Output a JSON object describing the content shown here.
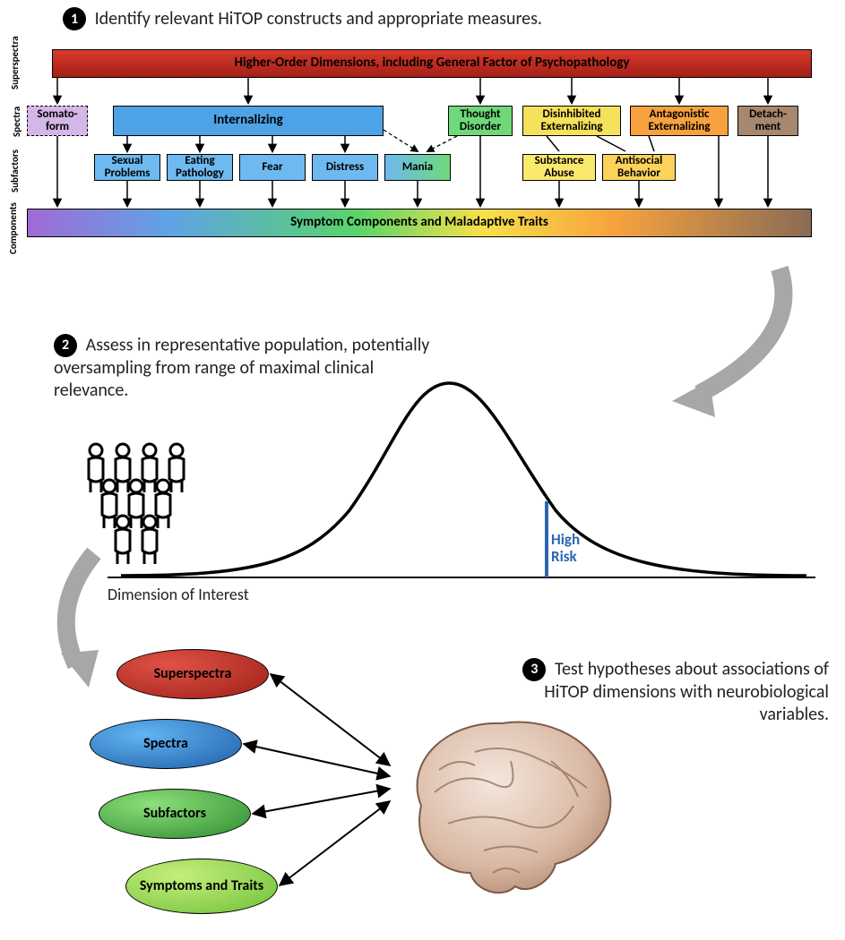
{
  "diagram_type": "infographic",
  "steps": {
    "s1": {
      "num": "1",
      "text": "Identify relevant HiTOP constructs and appropriate measures."
    },
    "s2": {
      "num": "2",
      "text": "Assess in representative population, potentially oversampling from range of maximal clinical relevance."
    },
    "s3": {
      "num": "3",
      "text": "Test hypotheses about associations of HiTOP dimensions with neurobiological variables."
    }
  },
  "row_labels": {
    "superspectra": "Superspectra",
    "spectra": "Spectra",
    "subfactors": "Subfactors",
    "components": "Components"
  },
  "hierarchy": {
    "superspectra": {
      "label": "Higher-Order Dimensions, including General Factor of Psychopathology",
      "background": "linear-gradient(#d83a2b,#a41f17)"
    },
    "spectra": {
      "somatoform": {
        "label": "Somato-\nform",
        "color": "#d4b6e7",
        "dashed": true
      },
      "internalizing": {
        "label": "Internalizing",
        "color": "#4ea3e6"
      },
      "thought": {
        "label": "Thought Disorder",
        "color": "#6fd97a"
      },
      "disinhibited": {
        "label": "Disinhibited Externalizing",
        "color": "#f6e15a"
      },
      "antagonistic": {
        "label": "Antagonistic Externalizing",
        "color": "#f7a23e"
      },
      "detachment": {
        "label": "Detach-\nment",
        "color": "#a8876f"
      }
    },
    "subfactors": {
      "sexual": {
        "label": "Sexual Problems",
        "color": "#6eb9ef"
      },
      "eating": {
        "label": "Eating Pathology",
        "color": "#6eb9ef"
      },
      "fear": {
        "label": "Fear",
        "color": "#6eb9ef"
      },
      "distress": {
        "label": "Distress",
        "color": "#6eb9ef"
      },
      "mania": {
        "label": "Mania",
        "color": "gradient"
      },
      "substance": {
        "label": "Substance Abuse",
        "color": "#fbe96e"
      },
      "antisocial": {
        "label": "Antisocial Behavior",
        "color": "#fbd35a"
      }
    },
    "components": {
      "label": "Symptom Components and Maladaptive Traits"
    }
  },
  "curve": {
    "axis_label": "Dimension of Interest",
    "high_risk": "High\nRisk",
    "high_risk_color": "#2b66b0",
    "curve_type": "normal_distribution",
    "threshold_position": 0.75
  },
  "ellipses": {
    "superspectra": {
      "label": "Superspectra",
      "fill": "#c0392b"
    },
    "spectra": {
      "label": "Spectra",
      "fill": "#3b86d6"
    },
    "subfactors": {
      "label": "Subfactors",
      "fill": "#4fb84d"
    },
    "symptoms": {
      "label": "Symptoms and Traits",
      "fill": "#97d653"
    }
  },
  "colors": {
    "arrow": "#a7a7a7",
    "text": "#222222",
    "badge_bg": "#000000",
    "badge_fg": "#ffffff"
  },
  "fonts": {
    "body": "Calibri, Arial, sans-serif",
    "step_size_pt": 15,
    "box_size_pt": 10
  }
}
